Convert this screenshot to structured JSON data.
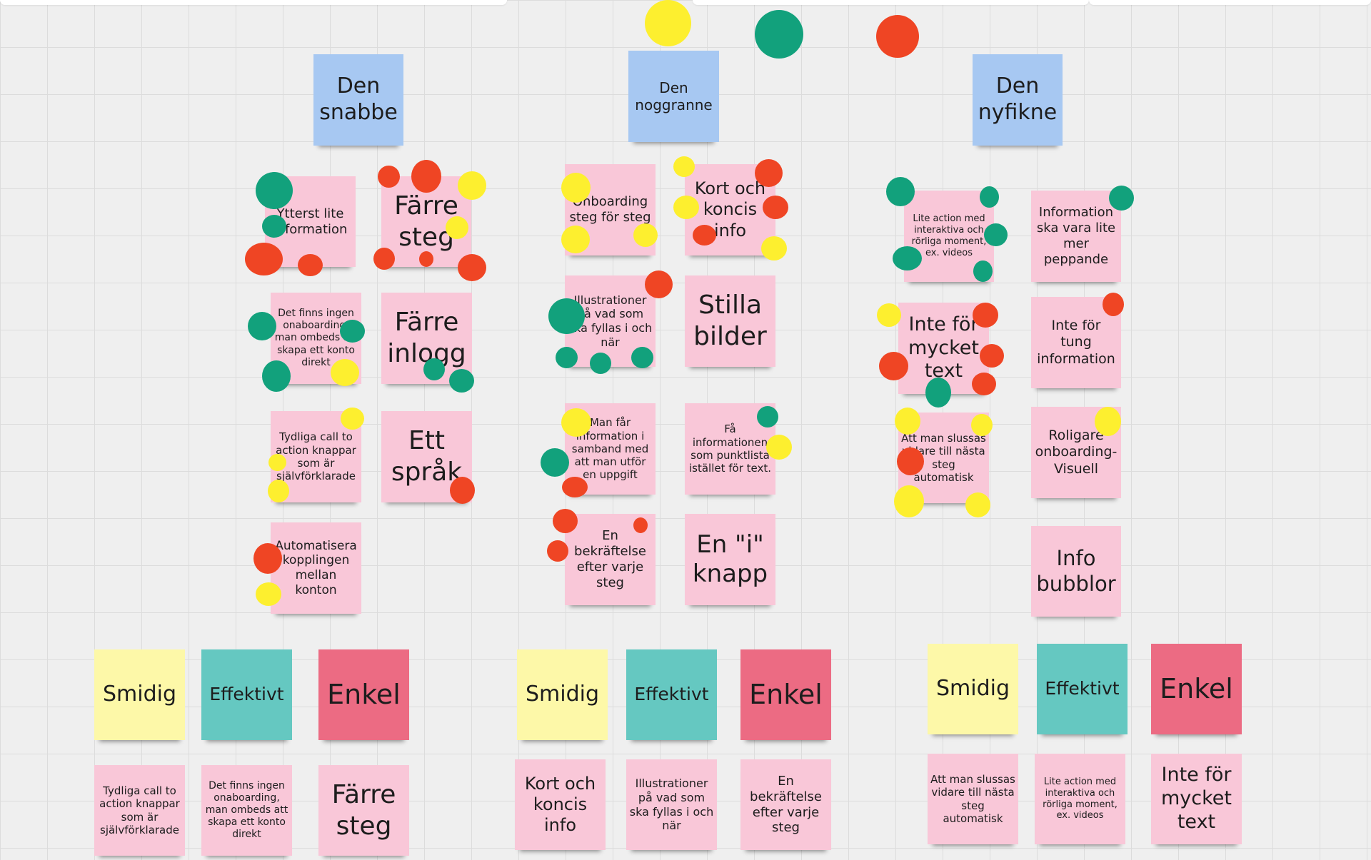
{
  "board": {
    "personas": [
      {
        "label": "Den snabbe"
      },
      {
        "label": "Den noggranne"
      },
      {
        "label": "Den nyfikne"
      }
    ],
    "column1": [
      {
        "label": "Ytterst lite information"
      },
      {
        "label": "Färre steg"
      },
      {
        "label": "Det finns ingen onaboarding, man ombeds att skapa ett konto direkt"
      },
      {
        "label": "Färre inlogg"
      },
      {
        "label": "Tydliga call to action knappar som är självförklarade"
      },
      {
        "label": "Ett språk"
      },
      {
        "label": "Automatisera kopplingen mellan konton"
      }
    ],
    "column2": [
      {
        "label": "Onboarding steg för steg"
      },
      {
        "label": "Kort och koncis info"
      },
      {
        "label": "Illustrationer på vad som ska fyllas i och när"
      },
      {
        "label": "Stilla bilder"
      },
      {
        "label": "Man får information i samband med att man utför en uppgift"
      },
      {
        "label": "Få informationen som punktlista istället för text."
      },
      {
        "label": "En bekräftelse efter varje steg"
      },
      {
        "label": "En \"i\" knapp"
      }
    ],
    "column3": [
      {
        "label": "Lite action med interaktiva och rörliga moment, ex. videos"
      },
      {
        "label": "Information ska vara lite mer peppande"
      },
      {
        "label": "Inte för mycket text"
      },
      {
        "label": "Inte för tung information"
      },
      {
        "label": "Att man slussas vidare till nästa steg automatisk"
      },
      {
        "label": "Roligare onboarding- Visuell"
      },
      {
        "label": "Info bubblor"
      }
    ],
    "summary1": [
      {
        "label": "Smidig"
      },
      {
        "label": "Effektivt"
      },
      {
        "label": "Enkel"
      },
      {
        "label": "Tydliga call to action knappar som är självförklarade"
      },
      {
        "label": "Det finns ingen onaboarding, man ombeds att skapa ett konto direkt"
      },
      {
        "label": "Färre steg"
      }
    ],
    "summary2": [
      {
        "label": "Smidig"
      },
      {
        "label": "Effektivt"
      },
      {
        "label": "Enkel"
      },
      {
        "label": "Kort och koncis info"
      },
      {
        "label": "Illustrationer på vad som ska fyllas i och när"
      },
      {
        "label": "En bekräftelse efter varje steg"
      }
    ],
    "summary3": [
      {
        "label": "Smidig"
      },
      {
        "label": "Effektivt"
      },
      {
        "label": "Enkel"
      },
      {
        "label": "Att man slussas vidare till nästa steg automatisk"
      },
      {
        "label": "Lite action med interaktiva och rörliga moment, ex. videos"
      },
      {
        "label": "Inte för mycket text"
      }
    ],
    "colors": {
      "sticky_pink": "#f9c7d8",
      "sticky_blue": "#a7c8f2",
      "sticky_yellow": "#fdf8a8",
      "sticky_teal": "#65c8c1",
      "sticky_red": "#ec6b83",
      "vote_green": "#12a17c",
      "vote_red": "#ef4524",
      "vote_yellow": "#fdef2f"
    }
  }
}
